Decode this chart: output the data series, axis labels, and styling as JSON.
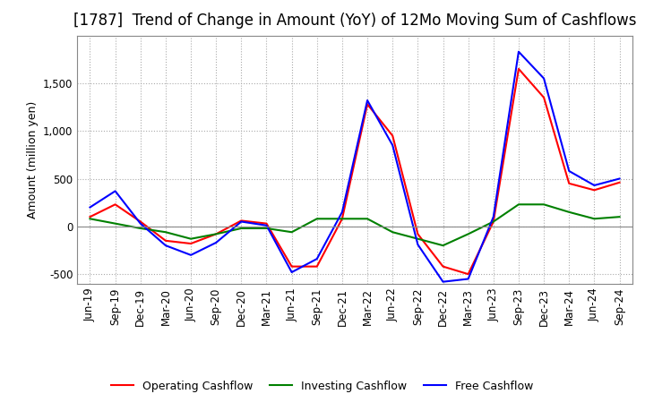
{
  "title": "[1787]  Trend of Change in Amount (YoY) of 12Mo Moving Sum of Cashflows",
  "ylabel": "Amount (million yen)",
  "x_labels": [
    "Jun-19",
    "Sep-19",
    "Dec-19",
    "Mar-20",
    "Jun-20",
    "Sep-20",
    "Dec-20",
    "Mar-21",
    "Jun-21",
    "Sep-21",
    "Dec-21",
    "Mar-22",
    "Jun-22",
    "Sep-22",
    "Dec-22",
    "Mar-23",
    "Jun-23",
    "Sep-23",
    "Dec-23",
    "Mar-24",
    "Jun-24",
    "Sep-24"
  ],
  "operating": [
    100,
    230,
    50,
    -150,
    -180,
    -80,
    60,
    30,
    -420,
    -420,
    80,
    1280,
    950,
    -80,
    -420,
    -500,
    50,
    1650,
    1350,
    450,
    380,
    460
  ],
  "investing": [
    80,
    30,
    -20,
    -60,
    -130,
    -80,
    -20,
    -20,
    -60,
    80,
    80,
    80,
    -60,
    -130,
    -200,
    -80,
    50,
    230,
    230,
    150,
    80,
    100
  ],
  "free": [
    200,
    370,
    30,
    -200,
    -300,
    -170,
    50,
    10,
    -480,
    -340,
    150,
    1320,
    850,
    -190,
    -580,
    -550,
    100,
    1830,
    1550,
    580,
    430,
    500
  ],
  "operating_color": "#ff0000",
  "investing_color": "#008000",
  "free_color": "#0000ff",
  "ylim": [
    -600,
    2000
  ],
  "yticks": [
    -500,
    0,
    500,
    1000,
    1500
  ],
  "grid_color": "#aaaaaa",
  "bg_color": "#ffffff",
  "title_fontsize": 12,
  "label_fontsize": 9,
  "tick_fontsize": 8.5
}
